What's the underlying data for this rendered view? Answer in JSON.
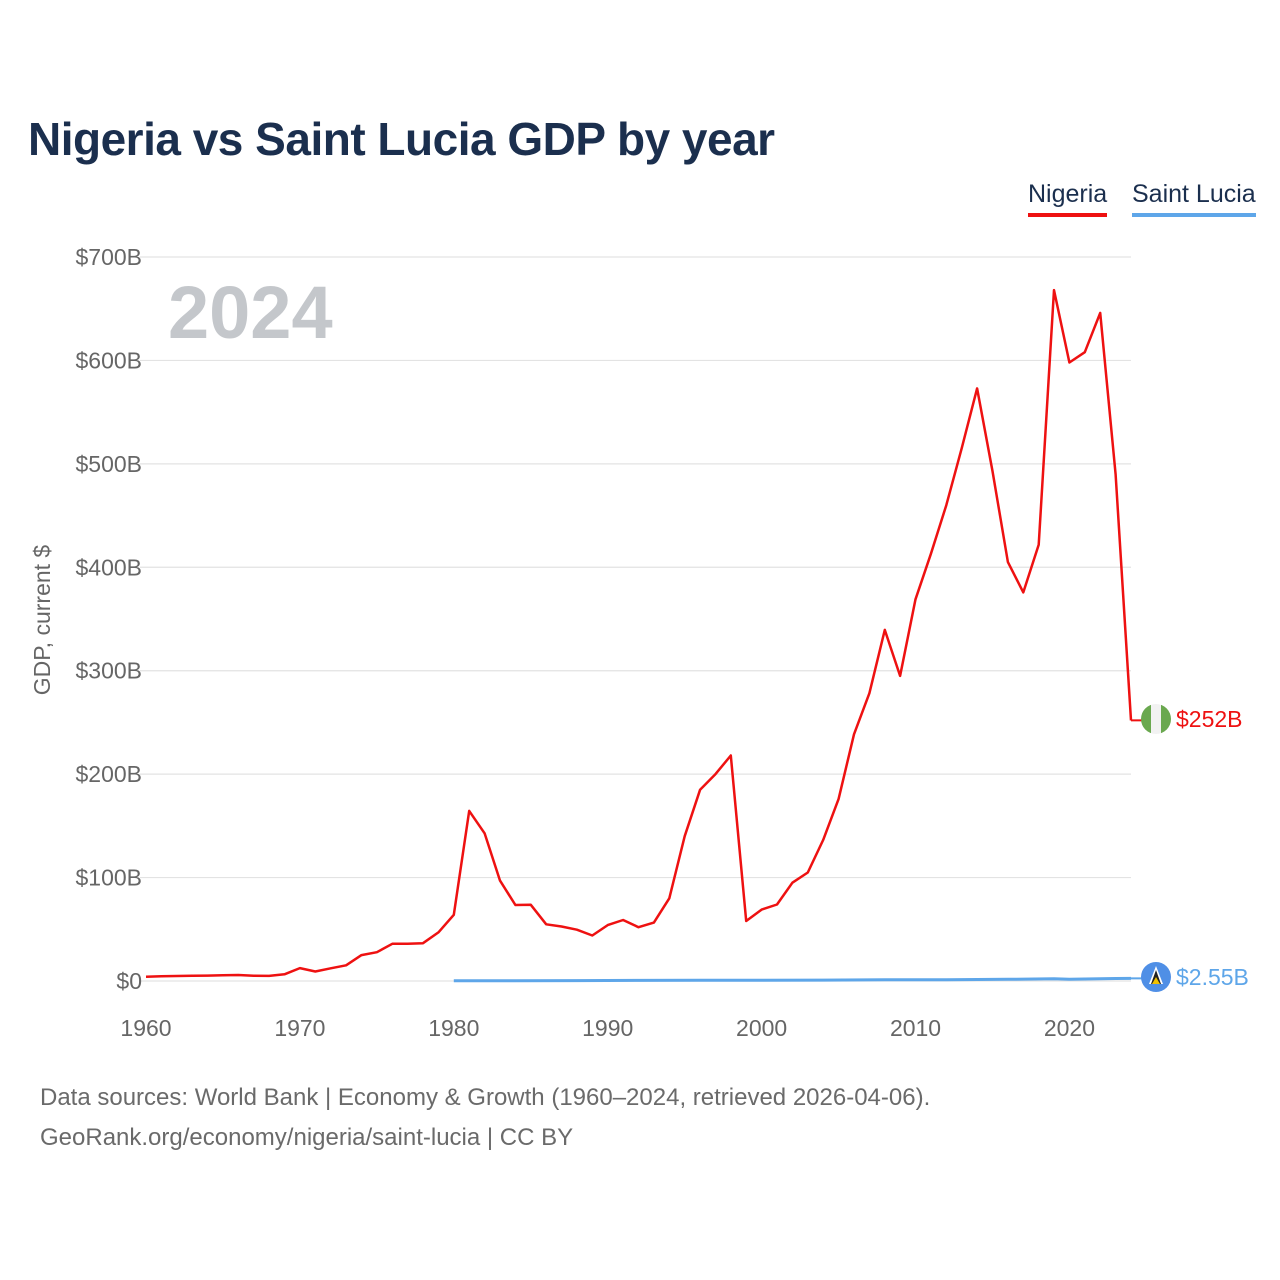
{
  "title": "Nigeria vs Saint Lucia GDP by year",
  "legend": [
    {
      "name": "Nigeria",
      "color": "#ee1111"
    },
    {
      "name": "Saint Lucia",
      "color": "#5ea6e9"
    }
  ],
  "year_watermark": "2024",
  "footer": {
    "sources": "Data sources: World Bank | Economy & Growth (1960–2024, retrieved 2026-04-06).",
    "link": "GeoRank.org/economy/nigeria/saint-lucia | CC BY"
  },
  "chart_data": {
    "type": "line",
    "title": "Nigeria vs Saint Lucia GDP by year",
    "ylabel": "GDP, current $",
    "xlabel": "",
    "xlim": [
      1960,
      2024
    ],
    "ylim": [
      0,
      700
    ],
    "units": "billions USD",
    "grid": true,
    "legend_position": "top-right",
    "x_ticks": [
      1960,
      1970,
      1980,
      1990,
      2000,
      2010,
      2020
    ],
    "x_tick_labels": [
      "1960",
      "1970",
      "1980",
      "1990",
      "2000",
      "2010",
      "2020"
    ],
    "y_ticks": [
      0,
      100,
      200,
      300,
      400,
      500,
      600,
      700
    ],
    "y_tick_labels": [
      "$0",
      "$100B",
      "$200B",
      "$300B",
      "$400B",
      "$500B",
      "$600B",
      "$700B"
    ],
    "end_labels": [
      "$252B",
      "$2.55B"
    ],
    "series": [
      {
        "name": "Nigeria",
        "color": "#ee1111",
        "x": [
          1960,
          1961,
          1962,
          1963,
          1964,
          1965,
          1966,
          1967,
          1968,
          1969,
          1970,
          1971,
          1972,
          1973,
          1974,
          1975,
          1976,
          1977,
          1978,
          1979,
          1980,
          1981,
          1982,
          1983,
          1984,
          1985,
          1986,
          1987,
          1988,
          1989,
          1990,
          1991,
          1992,
          1993,
          1994,
          1995,
          1996,
          1997,
          1998,
          1999,
          2000,
          2001,
          2002,
          2003,
          2004,
          2005,
          2006,
          2007,
          2008,
          2009,
          2010,
          2011,
          2012,
          2013,
          2014,
          2015,
          2016,
          2017,
          2018,
          2019,
          2020,
          2021,
          2022,
          2023,
          2024
        ],
        "values": [
          4.2,
          4.5,
          4.8,
          5.0,
          5.2,
          5.5,
          5.8,
          5.0,
          4.9,
          6.5,
          12.5,
          9.2,
          12.3,
          15.2,
          25.0,
          27.8,
          36.0,
          36.0,
          36.5,
          47.0,
          64.0,
          164.5,
          142.8,
          97.1,
          73.5,
          73.7,
          54.8,
          52.7,
          49.6,
          44.0,
          54.0,
          59.0,
          52.0,
          56.5,
          80.0,
          140.0,
          185.0,
          200.0,
          218.0,
          58.0,
          69.0,
          74.0,
          95.0,
          104.9,
          136.4,
          176.1,
          238.5,
          278.3,
          339.5,
          295.0,
          369.0,
          413.0,
          460.0,
          515.0,
          573.0,
          493.0,
          405.0,
          375.7,
          421.7,
          668.0,
          598.0,
          608.0,
          646.0,
          490.0,
          252.0
        ]
      },
      {
        "name": "Saint Lucia",
        "color": "#5ea6e9",
        "x": [
          1980,
          1984,
          1988,
          1992,
          1996,
          2000,
          2004,
          2008,
          2012,
          2016,
          2019,
          2020,
          2021,
          2022,
          2023,
          2024
        ],
        "values": [
          0.18,
          0.25,
          0.4,
          0.55,
          0.65,
          0.75,
          0.85,
          1.15,
          1.3,
          1.6,
          2.1,
          1.6,
          1.9,
          2.2,
          2.4,
          2.55
        ]
      }
    ]
  }
}
